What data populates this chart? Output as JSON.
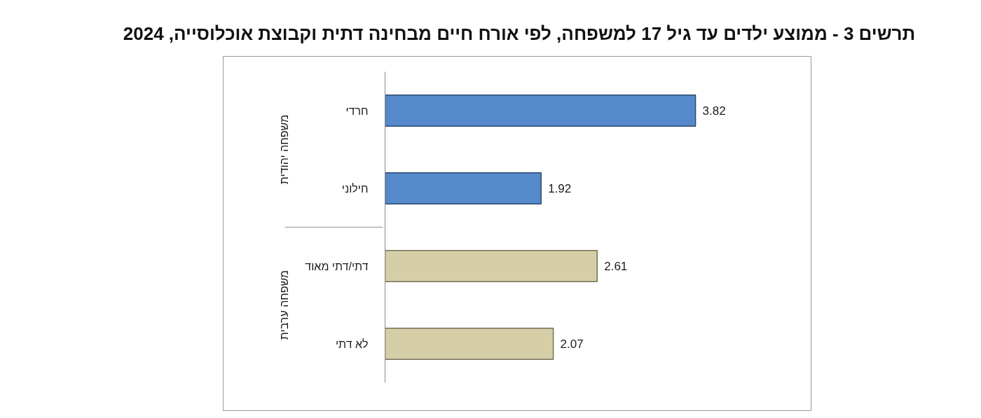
{
  "chart_data": {
    "type": "bar",
    "orientation": "horizontal",
    "title": "תרשים 3 - ממוצע ילדים עד גיל 17 למשפחה, לפי אורח חיים מבחינה דתית וקבוצת אוכלוסייה, 2024",
    "categories": [
      "חרדי",
      "חילוני",
      "דתי/דתי מאוד",
      "לא דתי"
    ],
    "values": [
      3.82,
      1.92,
      2.61,
      2.07
    ],
    "colors": [
      "#5589cc",
      "#5589cc",
      "#d5cea6",
      "#d5cea6"
    ],
    "annotations": [
      "משפחה יהודית",
      "משפחה ערבית"
    ],
    "data_labels": true,
    "tick_labels": "y",
    "grid": false
  }
}
